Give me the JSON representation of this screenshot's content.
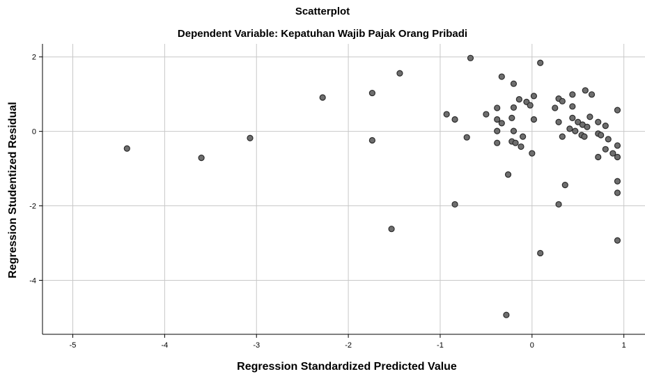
{
  "chart_data": {
    "type": "scatter",
    "title": "Scatterplot",
    "subtitle": "Dependent Variable: Kepatuhan Wajib Pajak Orang Pribadi",
    "xlabel": "Regression Standardized Predicted Value",
    "ylabel": "Regression Studentized Residual",
    "xlim": [
      -5.33,
      1.23
    ],
    "ylim": [
      -5.45,
      2.35
    ],
    "xticks": [
      -5,
      -4,
      -3,
      -2,
      -1,
      0,
      1
    ],
    "yticks": [
      2,
      0,
      -2,
      -4
    ],
    "xtick_labels": [
      "-5",
      "-4",
      "-3",
      "-2",
      "-1",
      "0",
      "1"
    ],
    "ytick_labels": [
      "2",
      "0",
      "-2",
      "-4"
    ],
    "grid": true,
    "marker_color": "#6e6e6e",
    "marker_edge": "#2b2b2b",
    "points": [
      [
        -4.41,
        -0.46
      ],
      [
        -3.6,
        -0.71
      ],
      [
        -3.07,
        -0.18
      ],
      [
        -2.28,
        0.91
      ],
      [
        -1.74,
        1.03
      ],
      [
        -1.74,
        -0.24
      ],
      [
        -1.44,
        1.56
      ],
      [
        -1.53,
        -2.62
      ],
      [
        -0.93,
        0.46
      ],
      [
        -0.84,
        0.32
      ],
      [
        -0.84,
        -1.96
      ],
      [
        -0.71,
        -0.16
      ],
      [
        -0.67,
        1.97
      ],
      [
        -0.5,
        0.46
      ],
      [
        -0.38,
        0.63
      ],
      [
        -0.38,
        0.32
      ],
      [
        -0.38,
        0.01
      ],
      [
        -0.38,
        -0.31
      ],
      [
        -0.33,
        1.47
      ],
      [
        -0.33,
        0.22
      ],
      [
        -0.26,
        -1.16
      ],
      [
        -0.28,
        -4.93
      ],
      [
        -0.22,
        0.36
      ],
      [
        -0.22,
        -0.27
      ],
      [
        -0.2,
        1.28
      ],
      [
        -0.2,
        0.64
      ],
      [
        -0.2,
        0.01
      ],
      [
        -0.18,
        -0.31
      ],
      [
        -0.14,
        0.86
      ],
      [
        -0.12,
        -0.41
      ],
      [
        -0.1,
        -0.14
      ],
      [
        -0.06,
        0.79
      ],
      [
        -0.02,
        0.7
      ],
      [
        0.0,
        -0.59
      ],
      [
        0.02,
        0.95
      ],
      [
        0.02,
        0.32
      ],
      [
        0.09,
        1.84
      ],
      [
        0.09,
        -3.27
      ],
      [
        0.25,
        0.63
      ],
      [
        0.29,
        0.88
      ],
      [
        0.29,
        0.25
      ],
      [
        0.29,
        -1.96
      ],
      [
        0.33,
        0.81
      ],
      [
        0.33,
        -0.14
      ],
      [
        0.36,
        -1.44
      ],
      [
        0.41,
        0.07
      ],
      [
        0.44,
        0.99
      ],
      [
        0.44,
        0.67
      ],
      [
        0.44,
        0.36
      ],
      [
        0.47,
        0.01
      ],
      [
        0.5,
        0.25
      ],
      [
        0.54,
        -0.1
      ],
      [
        0.55,
        0.18
      ],
      [
        0.57,
        -0.14
      ],
      [
        0.58,
        1.1
      ],
      [
        0.6,
        0.12
      ],
      [
        0.63,
        0.39
      ],
      [
        0.65,
        0.99
      ],
      [
        0.72,
        0.25
      ],
      [
        0.72,
        -0.06
      ],
      [
        0.72,
        -0.69
      ],
      [
        0.75,
        -0.1
      ],
      [
        0.8,
        0.15
      ],
      [
        0.8,
        -0.48
      ],
      [
        0.83,
        -0.21
      ],
      [
        0.88,
        -0.59
      ],
      [
        0.93,
        0.57
      ],
      [
        0.93,
        -0.38
      ],
      [
        0.93,
        -0.69
      ],
      [
        0.93,
        -1.34
      ],
      [
        0.93,
        -1.65
      ],
      [
        0.93,
        -2.93
      ]
    ]
  }
}
